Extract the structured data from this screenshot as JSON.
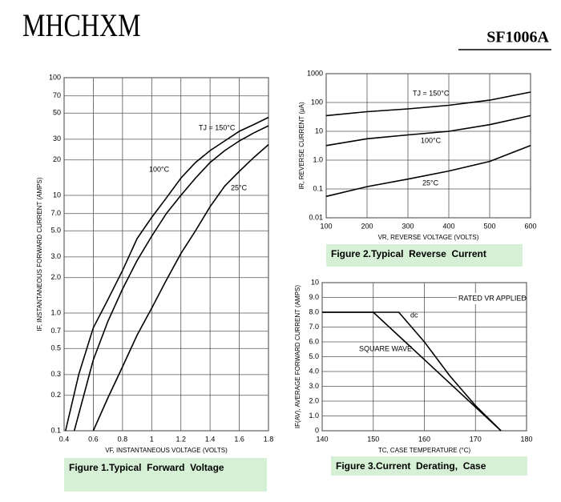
{
  "header": {
    "logo": "MHCHXM",
    "part": "SF1006A"
  },
  "chart_data": [
    {
      "type": "line",
      "ylog": true,
      "grid": true,
      "caption": "Figure 1.Typical  Forward  Voltage",
      "xlabel": "VF, INSTANTANEOUS VOLTAGE (VOLTS)",
      "ylabel": "IF, INSTANTANEOUS FORWARD CURRENT (AMPS)",
      "xlim": [
        0.4,
        1.8
      ],
      "xticks": [
        0.4,
        0.6,
        0.8,
        1.0,
        1.2,
        1.4,
        1.6,
        1.8
      ],
      "ylim": [
        0.1,
        100
      ],
      "yticks": [
        0.1,
        0.2,
        0.3,
        0.5,
        0.7,
        {
          "value": 1,
          "label": "1.0"
        },
        {
          "value": 2,
          "label": "2.0"
        },
        {
          "value": 3,
          "label": "3.0"
        },
        {
          "value": 5,
          "label": "5.0"
        },
        {
          "value": 7,
          "label": "7.0"
        },
        10,
        20,
        30,
        50,
        70,
        100
      ],
      "series": [
        {
          "name": "TJ = 150°C",
          "color": "#000000",
          "x": [
            0.41,
            0.5,
            0.6,
            0.7,
            0.8,
            0.9,
            1.0,
            1.1,
            1.2,
            1.3,
            1.4,
            1.5,
            1.6,
            1.7,
            1.8
          ],
          "values": [
            0.1,
            0.3,
            0.75,
            1.3,
            2.3,
            4.3,
            6.5,
            9.5,
            14,
            19,
            24,
            29,
            35,
            40,
            46
          ]
        },
        {
          "name": "100°C",
          "color": "#000000",
          "x": [
            0.47,
            0.6,
            0.7,
            0.8,
            0.9,
            1.0,
            1.1,
            1.2,
            1.3,
            1.4,
            1.5,
            1.6,
            1.7,
            1.8
          ],
          "values": [
            0.1,
            0.4,
            0.85,
            1.6,
            2.8,
            4.5,
            7,
            10,
            14,
            19,
            24,
            29,
            34,
            39
          ]
        },
        {
          "name": "25°C",
          "color": "#000000",
          "x": [
            0.6,
            0.7,
            0.8,
            0.9,
            1.0,
            1.1,
            1.2,
            1.3,
            1.4,
            1.5,
            1.6,
            1.7,
            1.8
          ],
          "values": [
            0.1,
            0.19,
            0.35,
            0.65,
            1.1,
            1.9,
            3.2,
            5,
            8,
            12,
            16,
            21,
            27
          ]
        }
      ]
    },
    {
      "type": "line",
      "ylog": true,
      "grid": true,
      "caption": "Figure 2.Typical  Reverse  Current",
      "xlabel": "VR, REVERSE VOLTAGE (VOLTS)",
      "ylabel": "IR, REVERSE CURRENT (μA)",
      "xlim": [
        100,
        600
      ],
      "xticks": [
        100,
        200,
        300,
        400,
        500,
        600
      ],
      "ylim": [
        0.01,
        1000
      ],
      "yticks": [
        0.01,
        0.1,
        {
          "value": 1,
          "label": "1.0"
        },
        10,
        100,
        1000
      ],
      "series": [
        {
          "name": "TJ = 150°C",
          "color": "#000000",
          "x": [
            100,
            200,
            300,
            400,
            500,
            600
          ],
          "values": [
            35,
            48,
            60,
            80,
            120,
            230
          ]
        },
        {
          "name": "100°C",
          "color": "#000000",
          "x": [
            100,
            200,
            300,
            400,
            500,
            600
          ],
          "values": [
            3.2,
            5.5,
            7.5,
            10,
            17,
            35
          ]
        },
        {
          "name": "25°C",
          "color": "#000000",
          "x": [
            100,
            200,
            300,
            400,
            500,
            600
          ],
          "values": [
            0.055,
            0.12,
            0.22,
            0.42,
            0.9,
            3.2
          ]
        }
      ]
    },
    {
      "type": "line",
      "ylog": false,
      "grid": true,
      "caption": "Figure 3.Current  Derating,  Case",
      "xlabel": "TC, CASE TEMPERATURE (°C)",
      "ylabel": "IF(AV), AVERAGE FORWARD CURRENT (AMPS)",
      "annotations": [
        "RATED VR APPLIED"
      ],
      "xlim": [
        140,
        180
      ],
      "xticks": [
        140,
        150,
        160,
        170,
        180
      ],
      "ylim": [
        0,
        10
      ],
      "yticks": [
        0,
        {
          "value": 1,
          "label": "1.0"
        },
        {
          "value": 2,
          "label": "2.0"
        },
        {
          "value": 3,
          "label": "3.0"
        },
        {
          "value": 4,
          "label": "4.0"
        },
        {
          "value": 5,
          "label": "5.0"
        },
        {
          "value": 6,
          "label": "6.0"
        },
        {
          "value": 7,
          "label": "7.0"
        },
        {
          "value": 8,
          "label": "8.0"
        },
        {
          "value": 9,
          "label": "9.0"
        },
        10
      ],
      "series": [
        {
          "name": "dc",
          "color": "#000000",
          "x": [
            140,
            155,
            160,
            165,
            170,
            175
          ],
          "values": [
            8,
            8,
            6,
            3.7,
            1.7,
            0
          ]
        },
        {
          "name": "SQUARE WAVE",
          "color": "#000000",
          "x": [
            140,
            150,
            175
          ],
          "values": [
            8,
            8,
            0
          ]
        }
      ]
    }
  ]
}
